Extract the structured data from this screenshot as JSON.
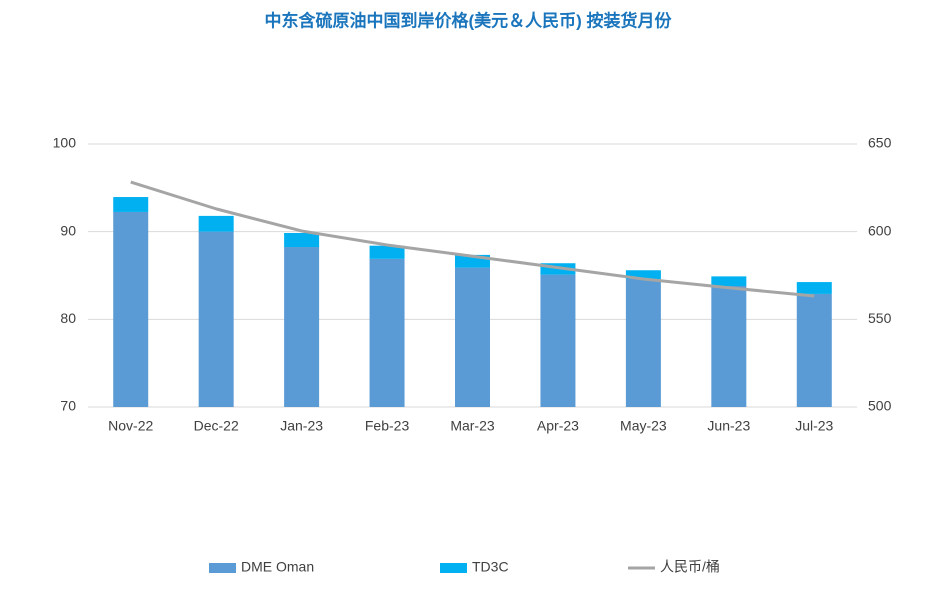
{
  "chart_data": {
    "type": "bar",
    "stacked": true,
    "title": "中东含硫原油中国到岸价格(美元＆人民币) 按装货月份",
    "categories": [
      "Nov-22",
      "Dec-22",
      "Jan-23",
      "Feb-23",
      "Mar-23",
      "Apr-23",
      "May-23",
      "Jun-23",
      "Jul-23"
    ],
    "series": [
      {
        "name": "DME Oman",
        "type": "bar",
        "color": "#5b9bd5",
        "values": [
          92.25,
          90.0,
          88.25,
          86.9,
          85.9,
          85.1,
          84.6,
          83.8,
          82.9
        ]
      },
      {
        "name": "TD3C",
        "type": "bar",
        "color": "#00b0f0",
        "values": [
          1.7,
          1.8,
          1.6,
          1.5,
          1.45,
          1.3,
          1.0,
          1.1,
          1.35
        ]
      },
      {
        "name": "人民币/桶",
        "type": "line",
        "axis": "y2",
        "color": "#a5a5a5",
        "values": [
          628.3,
          613,
          600.4,
          592.4,
          586,
          579.5,
          573,
          568,
          563.3
        ]
      }
    ],
    "ylim": [
      70,
      100
    ],
    "yticks": [
      70,
      80,
      90,
      100
    ],
    "y2lim": [
      500,
      650
    ],
    "y2ticks": [
      500,
      550,
      600,
      650
    ],
    "grid": true,
    "legend": "bottom"
  }
}
